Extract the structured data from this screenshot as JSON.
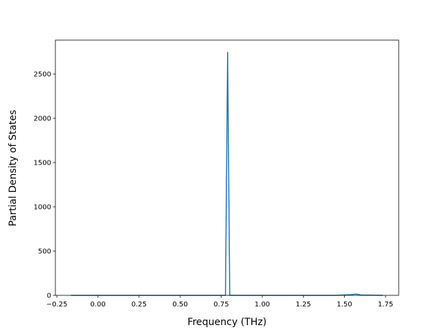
{
  "chart_data": {
    "type": "line",
    "xlabel": "Frequency (THz)",
    "ylabel": "Partial Density of States",
    "x": [
      -0.164,
      0.76,
      0.776,
      0.789,
      0.802,
      0.82,
      1.45,
      1.54,
      1.57,
      1.6,
      1.735
    ],
    "series": [
      {
        "color": "#1f77b4",
        "values": [
          0,
          0,
          0,
          2750,
          0,
          0,
          0,
          8,
          15,
          4,
          0
        ]
      }
    ],
    "xlim": [
      -0.259,
      1.83
    ],
    "ylim": [
      0,
      2883
    ],
    "xticks": [
      {
        "value": -0.25,
        "label": "−0.25"
      },
      {
        "value": 0,
        "label": "0.00"
      },
      {
        "value": 0.25,
        "label": "0.25"
      },
      {
        "value": 0.5,
        "label": "0.50"
      },
      {
        "value": 0.75,
        "label": "0.75"
      },
      {
        "value": 1,
        "label": "1.00"
      },
      {
        "value": 1.25,
        "label": "1.25"
      },
      {
        "value": 1.5,
        "label": "1.50"
      },
      {
        "value": 1.75,
        "label": "1.75"
      }
    ],
    "yticks": [
      0,
      500,
      1000,
      1500,
      2000,
      2500
    ]
  }
}
